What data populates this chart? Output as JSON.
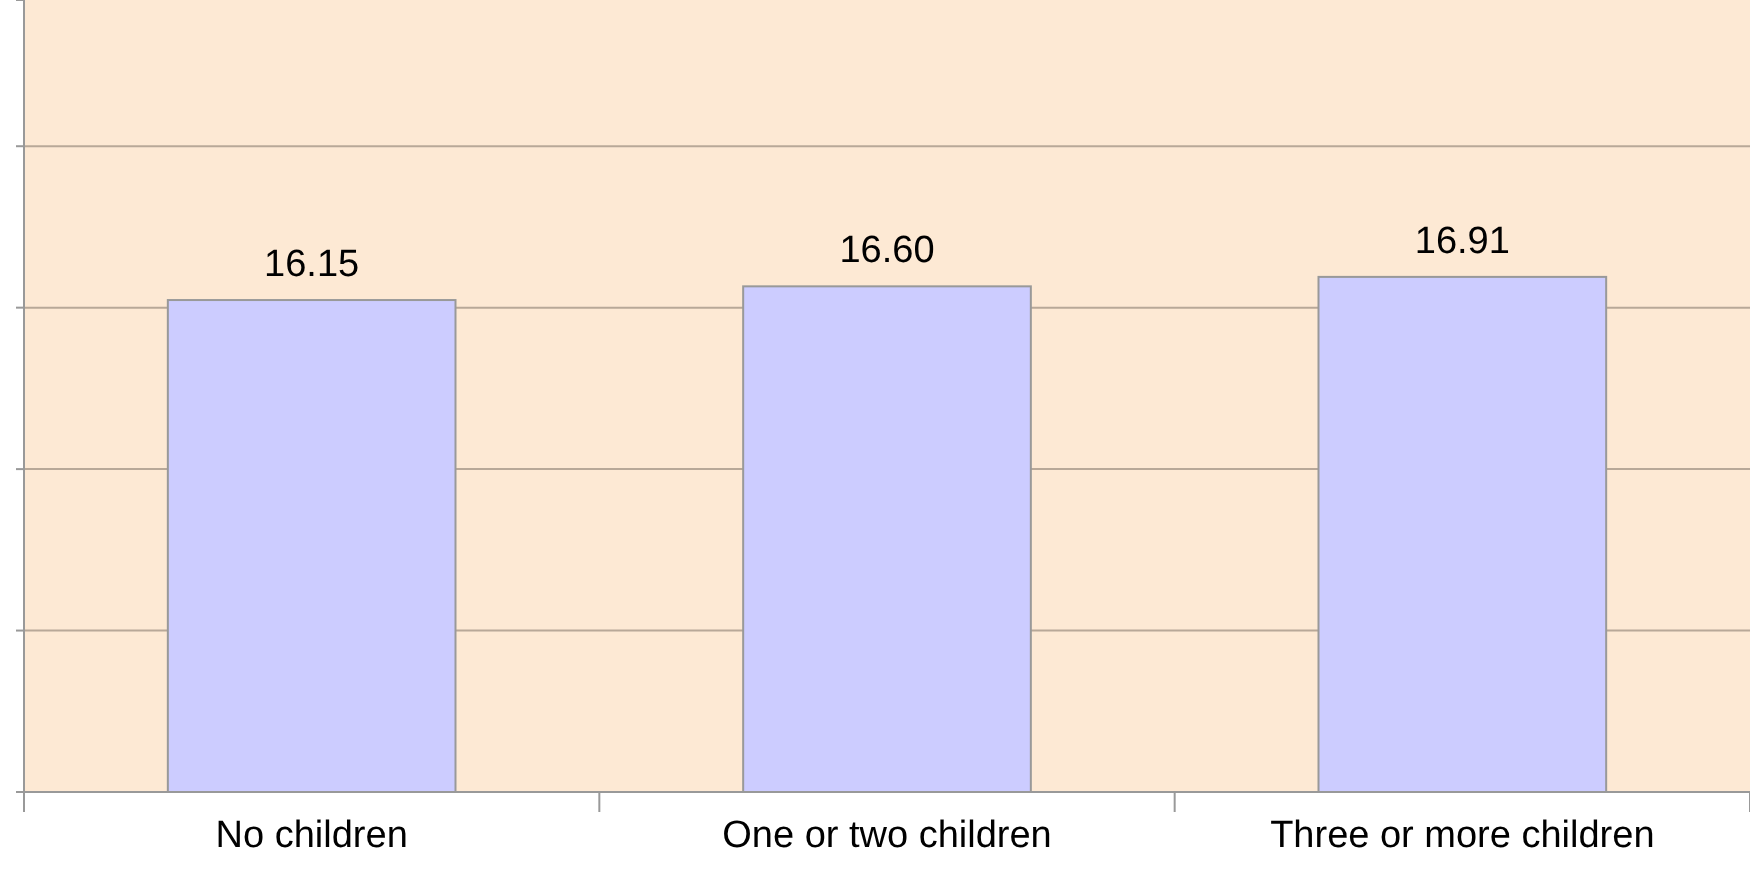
{
  "chart_data": {
    "type": "bar",
    "categories": [
      "No children",
      "One or two children",
      "Three or more children"
    ],
    "values": [
      16.15,
      16.6,
      16.91
    ],
    "value_labels": [
      "16.15",
      "16.60",
      "16.91"
    ],
    "color": "#ccccff",
    "ylim": [
      0,
      26
    ],
    "yticks": [
      {
        "value": 0,
        "label": null
      },
      {
        "value": 5.3,
        "label": null
      },
      {
        "value": 10.6,
        "label": null
      },
      {
        "value": 15.9,
        "label": null
      },
      {
        "value": 21.2,
        "label": null
      }
    ],
    "grid": "y",
    "tick_labels": "x"
  }
}
